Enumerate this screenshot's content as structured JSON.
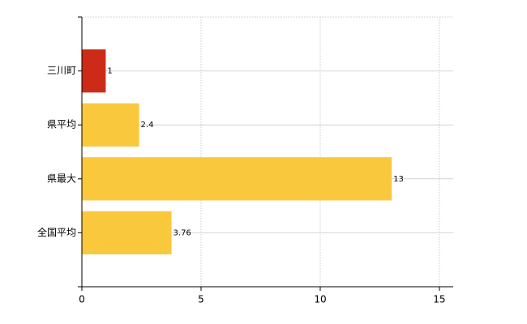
{
  "chart_data": {
    "type": "bar",
    "orientation": "horizontal",
    "categories": [
      "三川町",
      "県平均",
      "県最大",
      "全国平均"
    ],
    "values": [
      1,
      2.4,
      13,
      3.76
    ],
    "colors": [
      "#cc2b17",
      "#f9c83c",
      "#f9c83c",
      "#f9c83c"
    ],
    "xlim": [
      0,
      15.58
    ],
    "xticks": [
      0,
      5,
      10,
      15
    ],
    "grid": true
  }
}
